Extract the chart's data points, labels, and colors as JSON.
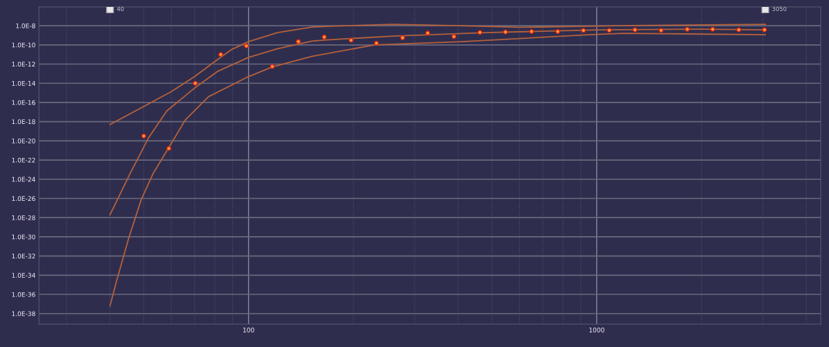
{
  "chart_data": {
    "type": "scatter",
    "log": "xy",
    "grid": true,
    "legend": false,
    "marker": "circle",
    "xlim": [
      25,
      4400
    ],
    "ylim": [
      8e-40,
      9e-07
    ],
    "xticks": [
      100,
      1000
    ],
    "yticks": [
      {
        "value": 1e-08,
        "label": "1.0E-8"
      },
      {
        "value": 1e-10,
        "label": "1.0E-10"
      },
      {
        "value": 1e-12,
        "label": "1.0E-12"
      },
      {
        "value": 1e-14,
        "label": "1.0E-14"
      },
      {
        "value": 1e-16,
        "label": "1.0E-16"
      },
      {
        "value": 1e-18,
        "label": "1.0E-18"
      },
      {
        "value": 1e-20,
        "label": "1.0E-20"
      },
      {
        "value": 1e-22,
        "label": "1.0E-22"
      },
      {
        "value": 1e-24,
        "label": "1.0E-24"
      },
      {
        "value": 1e-26,
        "label": "1.0E-26"
      },
      {
        "value": 1e-28,
        "label": "1.0E-28"
      },
      {
        "value": 1e-30,
        "label": "1.0E-30"
      },
      {
        "value": 1e-32,
        "label": "1.0E-32"
      },
      {
        "value": 1e-34,
        "label": "1.0E-34"
      },
      {
        "value": 1e-36,
        "label": "1.0E-36"
      },
      {
        "value": 1e-38,
        "label": "1.0E-38"
      }
    ],
    "annotations": [
      {
        "text": "40",
        "x": 40,
        "y": 5e-07
      },
      {
        "text": "3050",
        "x": 3050,
        "y": 5e-07
      }
    ],
    "series": [
      {
        "type": "line",
        "marker": "none",
        "color": "#b5613b",
        "x": [
          40,
          50.1,
          60.1,
          70,
          80.3,
          89.2,
          100,
          121,
          152,
          172,
          260,
          385,
          602,
          951,
          1234,
          3050
        ],
        "values": [
          5e-19,
          4e-17,
          1.4e-15,
          5e-14,
          2e-12,
          3.2e-11,
          2.2e-10,
          1.9e-09,
          7.1e-09,
          8.9e-09,
          1.4e-08,
          1.05e-08,
          6.8e-09,
          8.9e-09,
          1.05e-08,
          1.4e-08
        ]
      },
      {
        "type": "line",
        "marker": "none",
        "color": "#b5613b",
        "x": [
          40,
          45.7,
          51.5,
          58.2,
          70,
          81.4,
          100,
          121,
          152,
          165,
          260,
          479,
          1008,
          1888,
          3050
        ],
        "values": [
          2e-28,
          4e-24,
          1.8e-20,
          1.3e-17,
          3.2e-15,
          1.7e-13,
          5e-12,
          4e-11,
          2.5e-10,
          3.2e-10,
          8.3e-10,
          1.9e-09,
          3.7e-09,
          4.4e-09,
          3.7e-09
        ]
      },
      {
        "type": "line",
        "marker": "none",
        "color": "#b5613b",
        "x": [
          40,
          41.7,
          45.3,
          49.2,
          53.2,
          59,
          65.9,
          76.7,
          100,
          117,
          152,
          230,
          411,
          951,
          1196,
          3050
        ],
        "values": [
          6.3e-38,
          2e-35,
          7.9e-31,
          7.9e-27,
          4e-24,
          2e-21,
          1.6e-18,
          4e-16,
          5e-14,
          5e-13,
          6.3e-12,
          1e-10,
          2.2e-10,
          1.15e-09,
          1.6e-09,
          1.15e-09
        ]
      },
      {
        "color": "#ff9a3c",
        "x": [
          50,
          59,
          70.3,
          83.2,
          98.6,
          117,
          139,
          165,
          197,
          233,
          277,
          327,
          389,
          462,
          547,
          650,
          773,
          916,
          1087,
          1288,
          1531,
          1820,
          2153,
          2559,
          3034
        ],
        "values": [
          3.2e-20,
          1.6e-21,
          1e-14,
          1e-11,
          7.9e-11,
          5.6e-13,
          2.2e-10,
          6.6e-10,
          3.1e-10,
          1.5e-10,
          5.6e-10,
          1.7e-09,
          7.4e-10,
          2e-09,
          2.2e-09,
          2.5e-09,
          2.5e-09,
          3.2e-09,
          3.3e-09,
          3.7e-09,
          3.3e-09,
          4.2e-09,
          4.2e-09,
          3.7e-09,
          3.7e-09
        ]
      }
    ]
  }
}
